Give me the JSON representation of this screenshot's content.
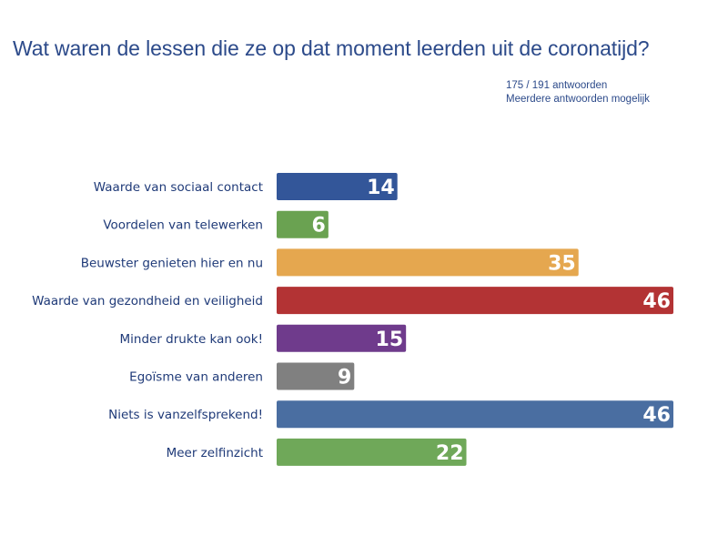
{
  "title": "Wat waren de lessen die ze op dat moment leerden uit de coronatijd?",
  "responses_note": "175 / 191 antwoorden",
  "multiple_note": "Meerdere antwoorden mogelijk",
  "colors": {
    "text": "#2c4a8a",
    "category_text": "#1f3a78"
  },
  "chart_data": {
    "type": "bar",
    "orientation": "horizontal",
    "title": "Wat waren de lessen die ze op dat moment leerden uit de coronatijd?",
    "xlabel": "",
    "ylabel": "",
    "xlim": [
      0,
      46
    ],
    "grid": false,
    "data_labels": "inside-end",
    "categories": [
      "Waarde van sociaal contact",
      "Voordelen van telewerken",
      "Beuwster genieten hier en nu",
      "Waarde van gezondheid en veiligheid",
      "Minder drukte kan ook!",
      "Egoïsme van anderen",
      "Niets is vanzelfsprekend!",
      "Meer zelfinzicht"
    ],
    "values": [
      14,
      6,
      35,
      46,
      15,
      9,
      46,
      22
    ],
    "bar_colors": [
      "#335699",
      "#6aa251",
      "#e5a74f",
      "#b33334",
      "#6f3b8c",
      "#808080",
      "#4a6ea1",
      "#6fa859"
    ]
  }
}
